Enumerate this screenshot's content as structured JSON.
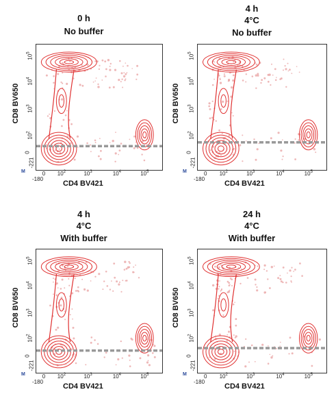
{
  "chart_data": [
    {
      "type": "scatter",
      "title_lines": [
        "0 h",
        "No buffer"
      ],
      "xlabel": "CD4 BV421",
      "ylabel": "CD8 BV650",
      "x_ticks": [
        {
          "base": "-180",
          "exp": ""
        },
        {
          "base": "0",
          "exp": ""
        },
        {
          "base": "10",
          "exp": "2"
        },
        {
          "base": "10",
          "exp": "3"
        },
        {
          "base": "10",
          "exp": "4"
        },
        {
          "base": "10",
          "exp": "5"
        }
      ],
      "y_ticks": [
        {
          "base": "-221",
          "exp": ""
        },
        {
          "base": "0",
          "exp": ""
        },
        {
          "base": "10",
          "exp": "2"
        },
        {
          "base": "10",
          "exp": "3"
        },
        {
          "base": "10",
          "exp": "4"
        },
        {
          "base": "10",
          "exp": "5"
        }
      ],
      "corner_label": "M",
      "gate_y": 0.19
    },
    {
      "type": "scatter",
      "title_lines": [
        "4 h",
        "4°C",
        "No buffer"
      ],
      "xlabel": "CD4 BV421",
      "ylabel": "CD8 BV650",
      "x_ticks": [
        {
          "base": "-180",
          "exp": ""
        },
        {
          "base": "0",
          "exp": ""
        },
        {
          "base": "10",
          "exp": "2"
        },
        {
          "base": "10",
          "exp": "3"
        },
        {
          "base": "10",
          "exp": "4"
        },
        {
          "base": "10",
          "exp": "5"
        }
      ],
      "y_ticks": [
        {
          "base": "-221",
          "exp": ""
        },
        {
          "base": "0",
          "exp": ""
        },
        {
          "base": "10",
          "exp": "2"
        },
        {
          "base": "10",
          "exp": "3"
        },
        {
          "base": "10",
          "exp": "4"
        },
        {
          "base": "10",
          "exp": "5"
        }
      ],
      "corner_label": "M",
      "gate_y": 0.22
    },
    {
      "type": "scatter",
      "title_lines": [
        "4 h",
        "4°C",
        "With buffer"
      ],
      "xlabel": "CD4 BV421",
      "ylabel": "CD8 BV650",
      "x_ticks": [
        {
          "base": "-180",
          "exp": ""
        },
        {
          "base": "0",
          "exp": ""
        },
        {
          "base": "10",
          "exp": "2"
        },
        {
          "base": "10",
          "exp": "3"
        },
        {
          "base": "10",
          "exp": "4"
        },
        {
          "base": "10",
          "exp": "5"
        }
      ],
      "y_ticks": [
        {
          "base": "-221",
          "exp": ""
        },
        {
          "base": "0",
          "exp": ""
        },
        {
          "base": "10",
          "exp": "2"
        },
        {
          "base": "10",
          "exp": "3"
        },
        {
          "base": "10",
          "exp": "4"
        },
        {
          "base": "10",
          "exp": "5"
        }
      ],
      "corner_label": "M",
      "gate_y": 0.18
    },
    {
      "type": "scatter",
      "title_lines": [
        "24 h",
        "4°C",
        "With buffer"
      ],
      "xlabel": "CD4 BV421",
      "ylabel": "CD8 BV650",
      "x_ticks": [
        {
          "base": "-180",
          "exp": ""
        },
        {
          "base": "0",
          "exp": ""
        },
        {
          "base": "10",
          "exp": "2"
        },
        {
          "base": "10",
          "exp": "3"
        },
        {
          "base": "10",
          "exp": "4"
        },
        {
          "base": "10",
          "exp": "5"
        }
      ],
      "y_ticks": [
        {
          "base": "-221",
          "exp": ""
        },
        {
          "base": "0",
          "exp": ""
        },
        {
          "base": "10",
          "exp": "2"
        },
        {
          "base": "10",
          "exp": "3"
        },
        {
          "base": "10",
          "exp": "4"
        },
        {
          "base": "10",
          "exp": "5"
        }
      ],
      "corner_label": "M",
      "gate_y": 0.2
    }
  ],
  "colors": {
    "contour": "#e03030",
    "dots": "#e8a0a0",
    "gate_line": "#999999",
    "axis": "#333333",
    "corner_label": "#2a4a9a"
  }
}
